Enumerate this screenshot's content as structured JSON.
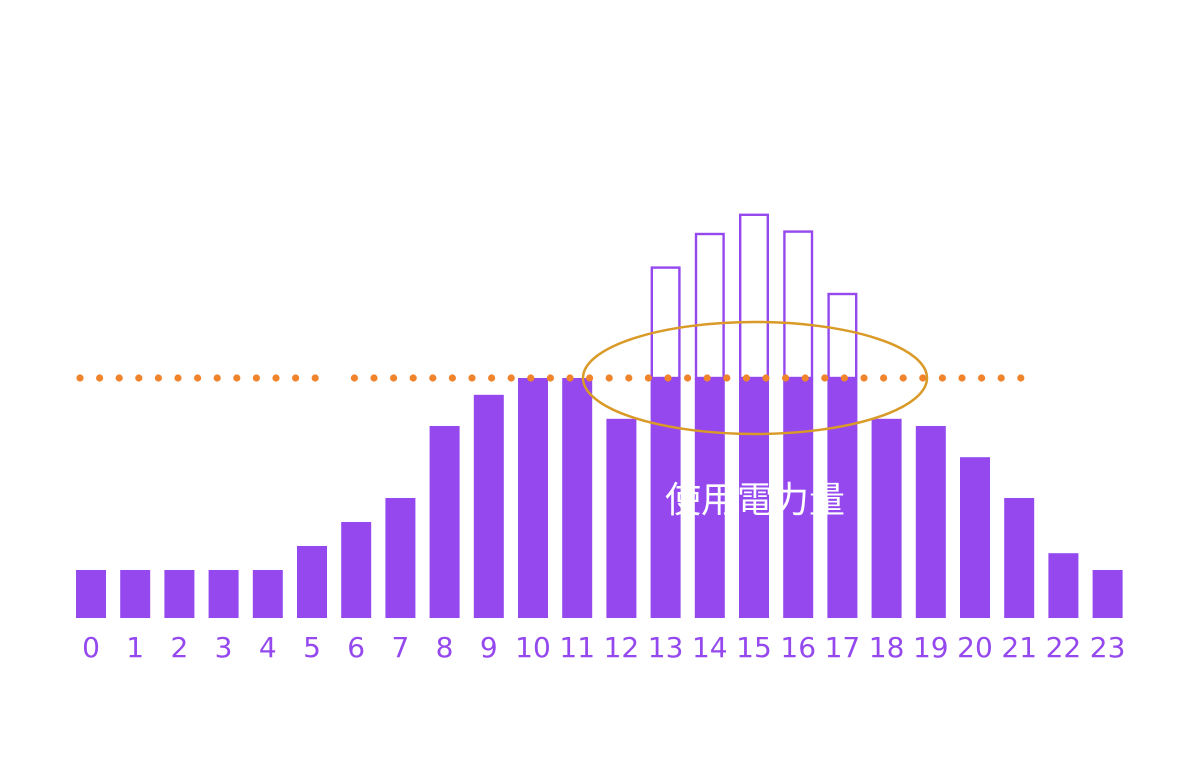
{
  "chart_data": {
    "type": "bar",
    "title": "",
    "xlabel": "",
    "ylabel": "",
    "categories": [
      "0",
      "1",
      "2",
      "3",
      "4",
      "5",
      "6",
      "7",
      "8",
      "9",
      "10",
      "11",
      "12",
      "13",
      "14",
      "15",
      "16",
      "17",
      "18",
      "19",
      "20",
      "21",
      "22",
      "23"
    ],
    "series": [
      {
        "name": "使用電力量",
        "values": [
          20,
          20,
          20,
          20,
          20,
          30,
          40,
          50,
          80,
          93,
          100,
          100,
          83,
          100,
          100,
          100,
          100,
          100,
          83,
          80,
          67,
          50,
          27,
          20
        ]
      },
      {
        "name": "",
        "values": [
          0,
          0,
          0,
          0,
          0,
          0,
          0,
          0,
          0,
          0,
          0,
          0,
          0,
          46,
          60,
          68,
          61,
          35,
          0,
          0,
          0,
          0,
          0,
          0
        ]
      }
    ],
    "threshold": 100,
    "ylim": [
      0,
      170
    ],
    "annotations": [
      "使用電力量"
    ],
    "grid": false,
    "legend": "none",
    "colors": {
      "bar": "#9448ee",
      "excess_outline": "#9448ee",
      "dotted_line": "#f0842c",
      "ellipse": "#d99a28",
      "tick_text": "#9448ee",
      "label_text": "#ffffff"
    }
  }
}
